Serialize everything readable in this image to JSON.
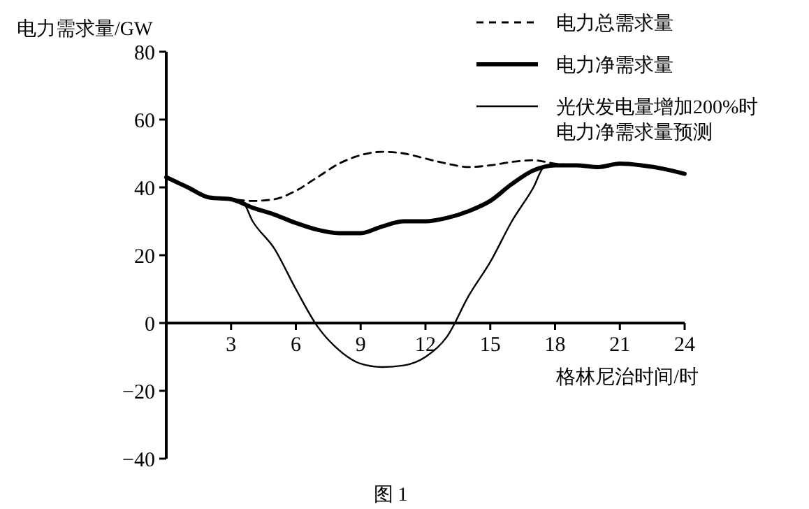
{
  "chart_data": {
    "type": "line",
    "ylabel": "电力需求量/GW",
    "xlabel": "格林尼治时间/时",
    "annotations": [
      "图 1"
    ],
    "x": [
      0,
      1,
      2,
      3,
      4,
      5,
      6,
      7,
      8,
      9,
      10,
      11,
      12,
      13,
      14,
      15,
      16,
      17,
      18,
      19,
      20,
      21,
      22,
      23,
      24
    ],
    "xlim": [
      0,
      24
    ],
    "xticks": [
      3,
      6,
      9,
      12,
      15,
      18,
      21,
      24
    ],
    "ylim": [
      -40,
      80
    ],
    "yticks": [
      -40,
      -20,
      0,
      20,
      40,
      60,
      80
    ],
    "grid": false,
    "legend": "top right",
    "series": [
      {
        "name": "电力总需求量",
        "color": "#000000",
        "line_style": "dashed",
        "values": [
          43,
          40,
          37,
          36.5,
          36,
          36.5,
          39,
          43,
          47,
          49.5,
          50.5,
          50,
          48.5,
          47,
          46,
          46.5,
          47.5,
          48,
          47,
          46.5,
          46,
          47,
          46.5,
          45.5,
          44
        ]
      },
      {
        "name": "电力净需求量",
        "color": "#000000",
        "line_style": "solid",
        "values": [
          43,
          40,
          37,
          36.5,
          34,
          32,
          29.5,
          27.5,
          26.5,
          26.5,
          28.5,
          30,
          30,
          31,
          33,
          36,
          41,
          45,
          46.5,
          46.5,
          46,
          47,
          46.5,
          45.5,
          44
        ]
      },
      {
        "name": "光伏发电量增加200%时电力净需求量预测",
        "color": "#000000",
        "line_style": "solid",
        "x": [
          0,
          1,
          2,
          3,
          3.5,
          4,
          5,
          6,
          7,
          8,
          9,
          10,
          11,
          12,
          13,
          14,
          15,
          16,
          17,
          17.5,
          18,
          19,
          20,
          21,
          22,
          23,
          24
        ],
        "values": [
          43,
          40,
          37,
          36.5,
          36,
          30,
          22,
          10,
          -1,
          -8,
          -12,
          -13,
          -12.5,
          -10,
          -4,
          8,
          18,
          30,
          40,
          46,
          46.5,
          46.5,
          46,
          47,
          46.5,
          45.5,
          44
        ]
      }
    ]
  }
}
